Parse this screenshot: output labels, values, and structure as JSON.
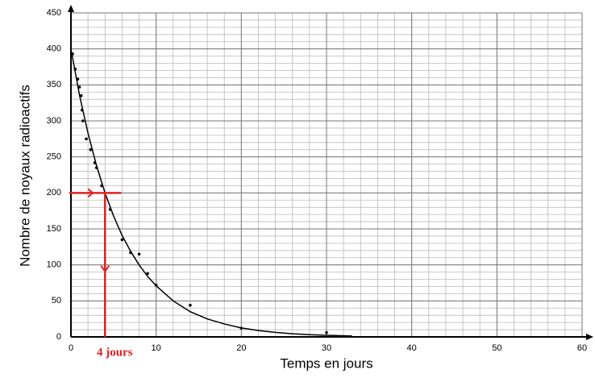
{
  "chart_data": {
    "type": "scatter",
    "xlabel": "Temps en jours",
    "ylabel": "Nombre de noyaux radioactifs",
    "points": {
      "color": "#000000",
      "x": [
        0.2,
        0.5,
        0.8,
        1.0,
        1.2,
        1.3,
        1.4,
        1.8,
        2.3,
        2.8,
        3.0,
        3.6,
        4.6,
        6.0,
        7.0,
        8.0,
        9.0,
        10.0,
        14.0,
        20.0,
        30.0
      ],
      "values": [
        393,
        372,
        358,
        347,
        335,
        315,
        300,
        275,
        260,
        242,
        235,
        210,
        177,
        135,
        117,
        115,
        88,
        72,
        44,
        12,
        6
      ]
    },
    "curve": {
      "color": "#000000",
      "x": [
        0,
        1,
        2,
        3,
        4,
        5,
        6,
        7,
        8,
        9,
        10,
        12,
        14,
        16,
        18,
        20,
        22,
        24,
        26,
        28,
        30,
        33
      ],
      "values": [
        400,
        336,
        283,
        238,
        200,
        168,
        141,
        119,
        100,
        84,
        71,
        50,
        35,
        25,
        18,
        12.5,
        8.8,
        6.3,
        4.4,
        3.1,
        2.2,
        1.3
      ]
    },
    "annotation": {
      "x": 4,
      "y": 200,
      "label": "4 jours",
      "color": "#e02020"
    },
    "xlim": [
      0,
      60
    ],
    "xticks": [
      0,
      10,
      20,
      30,
      40,
      50,
      60
    ],
    "ylim": [
      0,
      450
    ],
    "yticks": [
      0,
      50,
      100,
      150,
      200,
      250,
      300,
      350,
      400,
      450
    ],
    "grid": true,
    "minor_grid": {
      "x": 2,
      "y": 10
    }
  }
}
